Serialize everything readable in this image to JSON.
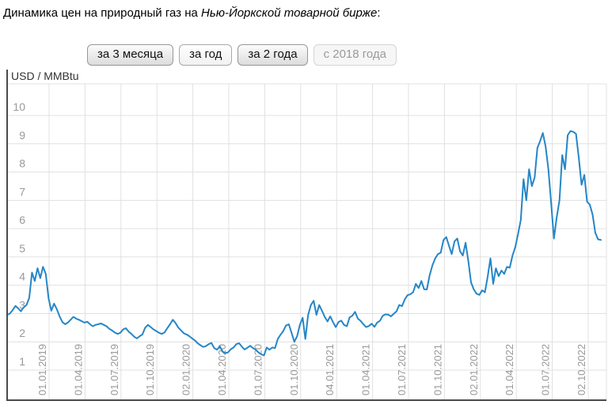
{
  "title": {
    "prefix": "Динамика цен на природный газ на ",
    "emphasis": "Нью-Йоркской товарной бирже",
    "suffix": ":"
  },
  "range_buttons": [
    {
      "label": "за 3 месяца",
      "state": "gray"
    },
    {
      "label": "за год",
      "state": "light"
    },
    {
      "label": "за 2 года",
      "state": "gray"
    },
    {
      "label": "с 2018 года",
      "state": "disabled"
    }
  ],
  "colors": {
    "line": "#2586c7",
    "grid": "#e0e0e0",
    "axis_border": "#4a4a4a",
    "tick_text": "#999999",
    "unit_text": "#333333"
  },
  "chart_data": {
    "type": "line",
    "title": "Динамика цен на природный газ на Нью-Йоркской товарной бирже",
    "ylabel": "USD / MMBtu",
    "xlabel": "",
    "grid": true,
    "legend_position": "none",
    "y_ticks": [
      "10",
      "9",
      "8",
      "7",
      "6",
      "5",
      "4",
      "3",
      "2",
      "1"
    ],
    "y_tick_values": [
      10,
      9,
      8,
      7,
      6,
      5,
      4,
      3,
      2,
      1
    ],
    "ylim": [
      0,
      11.1
    ],
    "x_ticks": [
      "01.01.2019",
      "01.04.2019",
      "01.07.2019",
      "01.10.2019",
      "02.01.2020",
      "01.04.2020",
      "01.07.2020",
      "01.10.2020",
      "04.01.2021",
      "01.04.2021",
      "01.07.2021",
      "01.10.2021",
      "02.01.2022",
      "01.04.2022",
      "01.07.2022",
      "02.10.2022"
    ],
    "series": [
      {
        "name": "natural-gas-price-weekly",
        "note": "weekly values USD/MMBtu, from ~mid-Sep 2018 to ~late Oct 2022, one value per week",
        "values": [
          2.95,
          3.0,
          3.12,
          3.27,
          3.18,
          3.08,
          3.22,
          3.3,
          3.55,
          4.45,
          4.15,
          4.6,
          4.25,
          4.65,
          4.4,
          3.55,
          3.1,
          3.35,
          3.15,
          2.9,
          2.7,
          2.62,
          2.68,
          2.78,
          2.88,
          2.82,
          2.78,
          2.73,
          2.68,
          2.71,
          2.62,
          2.55,
          2.6,
          2.62,
          2.65,
          2.6,
          2.55,
          2.46,
          2.4,
          2.33,
          2.28,
          2.32,
          2.44,
          2.48,
          2.36,
          2.28,
          2.18,
          2.12,
          2.2,
          2.26,
          2.5,
          2.6,
          2.52,
          2.44,
          2.38,
          2.32,
          2.28,
          2.33,
          2.48,
          2.62,
          2.78,
          2.66,
          2.5,
          2.4,
          2.3,
          2.26,
          2.2,
          2.12,
          2.05,
          1.95,
          1.88,
          1.82,
          1.85,
          1.92,
          1.96,
          1.78,
          1.72,
          1.84,
          1.66,
          1.6,
          1.63,
          1.74,
          1.8,
          1.92,
          1.95,
          1.83,
          1.73,
          1.79,
          1.86,
          1.78,
          1.72,
          1.63,
          1.56,
          1.52,
          1.8,
          1.72,
          1.8,
          1.78,
          2.1,
          2.25,
          2.38,
          2.58,
          2.62,
          2.32,
          2.0,
          2.2,
          2.6,
          2.85,
          2.1,
          2.95,
          3.3,
          3.45,
          2.95,
          3.3,
          3.1,
          2.88,
          2.72,
          2.9,
          2.7,
          2.52,
          2.7,
          2.75,
          2.6,
          2.55,
          2.86,
          2.92,
          3.06,
          2.82,
          2.74,
          2.62,
          2.52,
          2.56,
          2.64,
          2.53,
          2.68,
          2.74,
          2.92,
          2.97,
          2.96,
          2.9,
          2.99,
          3.08,
          3.3,
          3.26,
          3.5,
          3.65,
          3.68,
          3.75,
          4.05,
          3.9,
          4.15,
          3.86,
          3.85,
          4.35,
          4.7,
          4.95,
          5.1,
          5.15,
          5.6,
          5.7,
          5.4,
          5.1,
          5.55,
          5.65,
          5.2,
          5.05,
          5.5,
          4.85,
          4.1,
          3.85,
          3.7,
          3.66,
          3.82,
          3.75,
          4.3,
          4.95,
          4.05,
          4.6,
          4.32,
          4.52,
          4.4,
          4.65,
          4.62,
          5.05,
          5.35,
          5.8,
          6.3,
          7.75,
          7.0,
          8.1,
          7.5,
          7.8,
          8.85,
          9.1,
          9.38,
          8.9,
          8.1,
          6.9,
          5.65,
          6.4,
          7.0,
          8.6,
          8.1,
          9.3,
          9.45,
          9.42,
          9.35,
          8.5,
          7.55,
          7.9,
          6.95,
          6.85,
          6.5,
          5.85,
          5.62,
          5.6
        ]
      }
    ]
  }
}
